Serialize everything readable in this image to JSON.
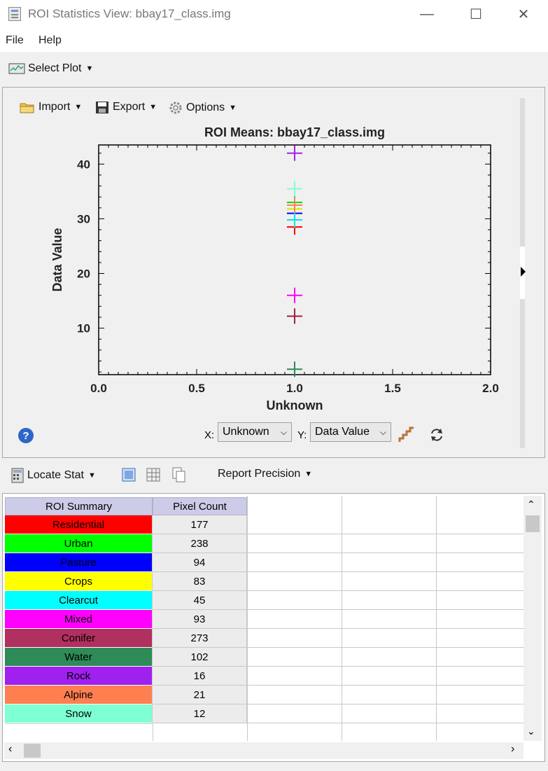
{
  "window": {
    "title": "ROI Statistics View: bbay17_class.img",
    "minimize": "—",
    "maximize": "☐",
    "close": "✕"
  },
  "menu": {
    "file": "File",
    "help": "Help"
  },
  "toolbar": {
    "select_plot": "Select Plot"
  },
  "plot_toolbar": {
    "import": "Import",
    "export": "Export",
    "options": "Options"
  },
  "axis_controls": {
    "x_label": "X:",
    "x_value": "Unknown",
    "y_label": "Y:",
    "y_value": "Data Value"
  },
  "table_toolbar": {
    "locate_stat": "Locate Stat",
    "report_precision": "Report Precision"
  },
  "chart_data": {
    "type": "scatter",
    "title": "ROI Means: bbay17_class.img",
    "xlabel": "Unknown",
    "ylabel": "Data Value",
    "xlim": [
      0.0,
      2.0
    ],
    "ylim": [
      1.5,
      43.5
    ],
    "x_ticks": [
      "0.0",
      "0.5",
      "1.0",
      "1.5",
      "2.0"
    ],
    "y_ticks": [
      "10",
      "20",
      "30",
      "40"
    ],
    "marker": "plus",
    "series": [
      {
        "color": "#ff0000",
        "x": 1.0,
        "y": 28.5
      },
      {
        "color": "#00e000",
        "x": 1.0,
        "y": 33.0
      },
      {
        "color": "#0000ff",
        "x": 1.0,
        "y": 31.0
      },
      {
        "color": "#e0e000",
        "x": 1.0,
        "y": 31.8
      },
      {
        "color": "#00e5ee",
        "x": 1.0,
        "y": 29.8
      },
      {
        "color": "#ff00ff",
        "x": 1.0,
        "y": 16.0
      },
      {
        "color": "#a02040",
        "x": 1.0,
        "y": 12.2
      },
      {
        "color": "#2e8b57",
        "x": 1.0,
        "y": 2.5
      },
      {
        "color": "#a020f0",
        "x": 1.0,
        "y": 42.0
      },
      {
        "color": "#ff7f50",
        "x": 1.0,
        "y": 32.5
      },
      {
        "color": "#7fffd4",
        "x": 1.0,
        "y": 35.5
      }
    ]
  },
  "table": {
    "headers": [
      "ROI Summary",
      "Pixel Count"
    ],
    "rows": [
      {
        "name": "Residential",
        "count": "177",
        "color": "#ff0000"
      },
      {
        "name": "Urban",
        "count": "238",
        "color": "#00ff00"
      },
      {
        "name": "Pasture",
        "count": "94",
        "color": "#0000ff"
      },
      {
        "name": "Crops",
        "count": "83",
        "color": "#ffff00"
      },
      {
        "name": "Clearcut",
        "count": "45",
        "color": "#00ffff"
      },
      {
        "name": "Mixed",
        "count": "93",
        "color": "#ff00ff"
      },
      {
        "name": "Conifer",
        "count": "273",
        "color": "#b03060"
      },
      {
        "name": "Water",
        "count": "102",
        "color": "#2e8b57"
      },
      {
        "name": "Rock",
        "count": "16",
        "color": "#a020f0"
      },
      {
        "name": "Alpine",
        "count": "21",
        "color": "#ff7f50"
      },
      {
        "name": "Snow",
        "count": "12",
        "color": "#7fffd4"
      }
    ]
  }
}
